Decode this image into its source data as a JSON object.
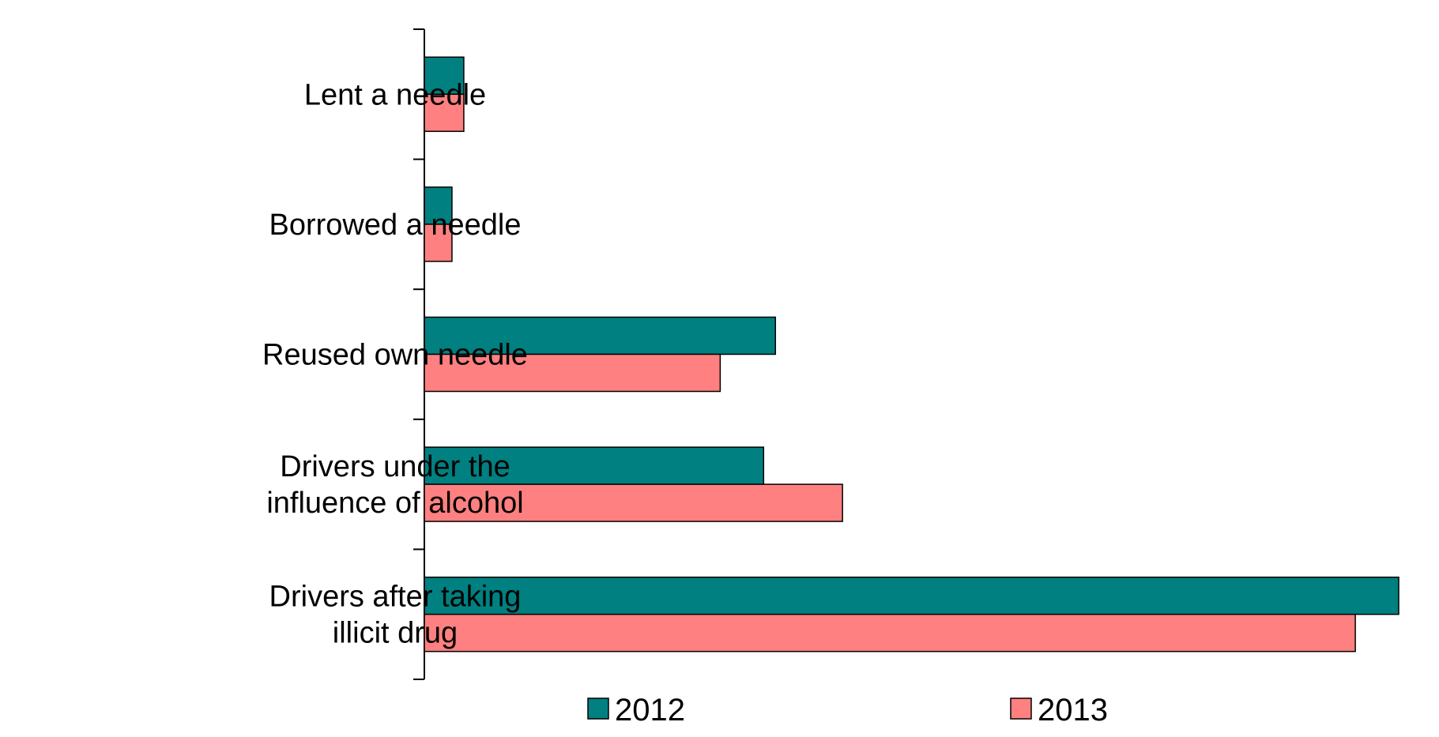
{
  "chart_data": {
    "type": "bar",
    "orientation": "horizontal",
    "categories": [
      [
        "Lent a needle"
      ],
      [
        "Borrowed a needle"
      ],
      [
        "Reused own needle"
      ],
      [
        "Drivers under the",
        "influence of alcohol"
      ],
      [
        "Drivers after taking",
        "illicit drug"
      ]
    ],
    "series": [
      {
        "name": "2012",
        "color": "#008080",
        "values": [
          1.0,
          0.7,
          8.9,
          8.6,
          24.7
        ]
      },
      {
        "name": "2013",
        "color": "#FF8080",
        "values": [
          1.0,
          0.7,
          7.5,
          10.6,
          23.6
        ]
      }
    ],
    "xlim": [
      0,
      25
    ],
    "grid": false,
    "legend": {
      "position": "bottom",
      "entries": [
        "2012",
        "2013"
      ]
    },
    "title": "",
    "xlabel": "",
    "ylabel": ""
  }
}
